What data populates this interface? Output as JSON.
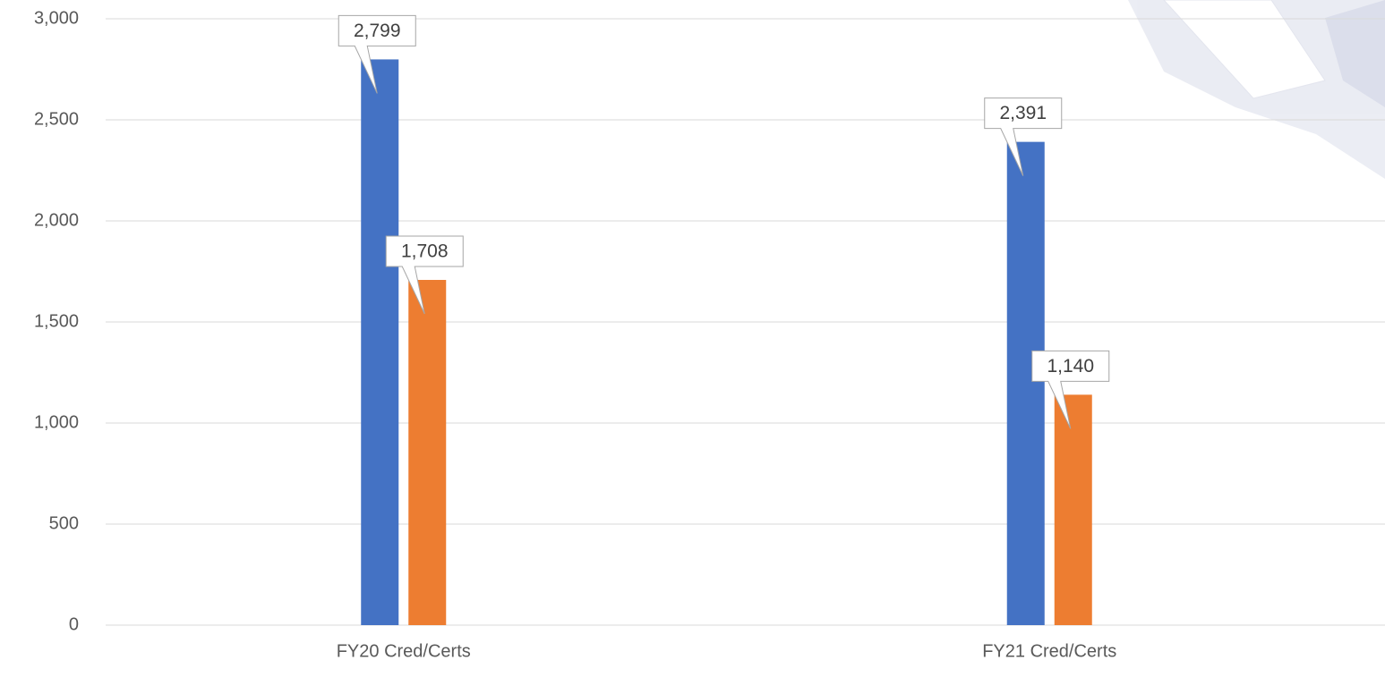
{
  "chart_data": {
    "type": "bar",
    "categories": [
      "FY20 Cred/Certs",
      "FY21 Cred/Certs"
    ],
    "series": [
      {
        "color": "#4472c4",
        "values": [
          2799,
          2391
        ],
        "value_labels": [
          "2,799",
          "2,391"
        ]
      },
      {
        "color": "#ed7d31",
        "values": [
          1708,
          1140
        ],
        "value_labels": [
          "1,708",
          "1,140"
        ]
      }
    ],
    "ylim": [
      0,
      3000
    ],
    "yticks": [
      0,
      500,
      {
        "value": 1000,
        "label": "1,000"
      },
      {
        "value": 1500,
        "label": "1,500"
      },
      {
        "value": 2000,
        "label": "2,000"
      },
      {
        "value": 2500,
        "label": "2,500"
      },
      {
        "value": 3000,
        "label": "3,000"
      }
    ],
    "grid": true
  }
}
